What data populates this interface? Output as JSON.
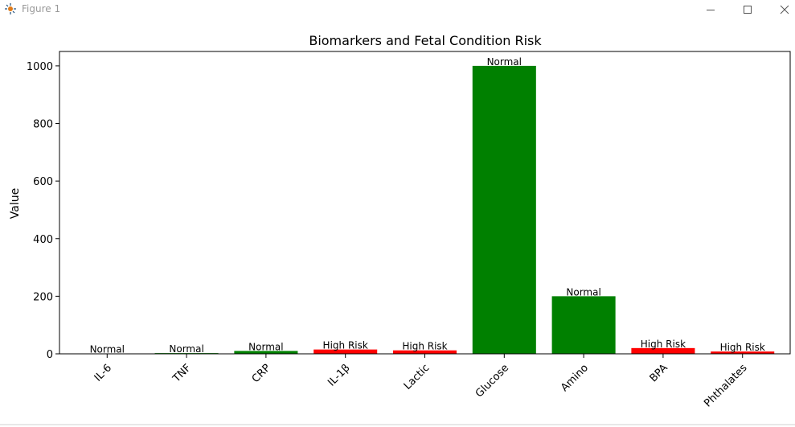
{
  "window": {
    "title": "Figure 1",
    "minimize_icon": "minimize-icon",
    "maximize_icon": "maximize-icon",
    "close_icon": "close-icon",
    "app_icon": "matplotlib-icon"
  },
  "chart_data": {
    "type": "bar",
    "title": "Biomarkers and Fetal Condition Risk",
    "xlabel": "",
    "ylabel": "Value",
    "ylim": [
      0,
      1050
    ],
    "yticks": [
      0,
      200,
      400,
      600,
      800,
      1000
    ],
    "categories": [
      "IL-6",
      "TNF",
      "CRP",
      "IL-1β",
      "Lactic",
      "Glucose",
      "Amino",
      "BPA",
      "Phthalates"
    ],
    "values": [
      1,
      2.5,
      10,
      15,
      12,
      1000,
      200,
      20,
      8
    ],
    "labels": [
      "Normal",
      "Normal",
      "Normal",
      "High Risk",
      "High Risk",
      "Normal",
      "Normal",
      "High Risk",
      "High Risk"
    ],
    "colors": [
      "#008000",
      "#008000",
      "#008000",
      "#ff0000",
      "#ff0000",
      "#008000",
      "#008000",
      "#ff0000",
      "#ff0000"
    ],
    "grid": false,
    "xtick_rotation": 45
  }
}
